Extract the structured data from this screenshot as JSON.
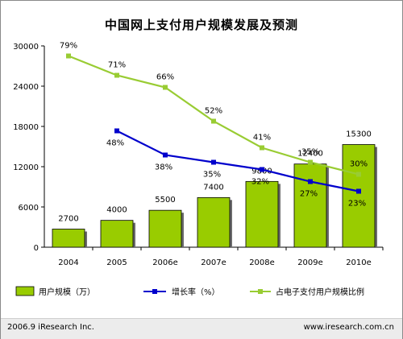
{
  "chart_data": {
    "type": "bar+line",
    "title": "中国网上支付用户规模发展及预测",
    "categories": [
      "2004",
      "2005",
      "2006e",
      "2007e",
      "2008e",
      "2009e",
      "2010e"
    ],
    "ylim": [
      0,
      30000
    ],
    "yticks": [
      0,
      6000,
      12000,
      18000,
      24000,
      30000
    ],
    "grid": false,
    "legend_placement": "bottom",
    "series": [
      {
        "name": "用户规模（万）",
        "kind": "bar",
        "color": "#99cc00",
        "values": [
          2700,
          4000,
          5500,
          7400,
          9800,
          12400,
          15300
        ],
        "labels": [
          "2700",
          "4000",
          "5500",
          "7400",
          "9800",
          "12400",
          "15300"
        ]
      },
      {
        "name": "增长率（%）",
        "kind": "line",
        "color": "#0000cc",
        "values": [
          null,
          48,
          38,
          35,
          32,
          27,
          23
        ],
        "labels": [
          "",
          "48%",
          "38%",
          "35%",
          "32%",
          "27%",
          "23%"
        ]
      },
      {
        "name": "占电子支付用户规模比例",
        "kind": "line",
        "color": "#99cc33",
        "values": [
          79,
          71,
          66,
          52,
          41,
          35,
          30
        ],
        "labels": [
          "79%",
          "71%",
          "66%",
          "52%",
          "41%",
          "35%",
          "30%"
        ]
      }
    ]
  },
  "footer": {
    "left": "2006.9 iResearch Inc.",
    "right": "www.iresearch.com.cn"
  }
}
